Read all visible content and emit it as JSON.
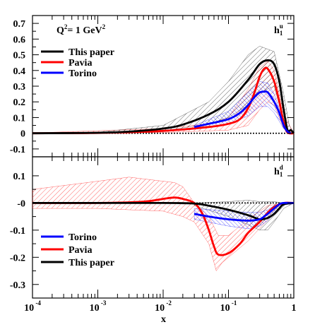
{
  "colors": {
    "this_paper": "#000000",
    "pavia": "#ff0000",
    "torino": "#0000ff"
  },
  "chart_data": {
    "type": "line",
    "xscale": "log",
    "xlim": [
      0.0001,
      1
    ],
    "x_tick_labels": [
      {
        "base": "10",
        "exp": "-4"
      },
      {
        "base": "10",
        "exp": "-3"
      },
      {
        "base": "10",
        "exp": "-2"
      },
      {
        "base": "10",
        "exp": "-1"
      },
      {
        "base": "1",
        "exp": ""
      }
    ],
    "xlabel": "x",
    "panels": [
      {
        "id": "u",
        "tag": {
          "main": "h",
          "sub": "1",
          "sup": "u"
        },
        "annotation": {
          "lhs": "Q",
          "lhs_sup": "2",
          "mid": "= 1 GeV",
          "rhs_sup": "2"
        },
        "ylim": [
          -0.15,
          0.75
        ],
        "y_ticks": [
          -0.1,
          0,
          0.1,
          0.2,
          0.3,
          0.4,
          0.5,
          0.6,
          0.7
        ],
        "y_tick_labels": [
          "-0.1",
          "0",
          "0.1",
          "0.2",
          "0.3",
          "0.4",
          "0.5",
          "0.6",
          "0.7"
        ],
        "legend": [
          "This paper",
          "Pavia",
          "Torino"
        ],
        "series": [
          {
            "name": "This paper",
            "color_key": "this_paper",
            "points": [
              [
                0.0001,
                0.0
              ],
              [
                0.001,
                0.003
              ],
              [
                0.003,
                0.01
              ],
              [
                0.01,
                0.03
              ],
              [
                0.02,
                0.055
              ],
              [
                0.05,
                0.12
              ],
              [
                0.1,
                0.2
              ],
              [
                0.2,
                0.34
              ],
              [
                0.3,
                0.44
              ],
              [
                0.4,
                0.465
              ],
              [
                0.5,
                0.44
              ],
              [
                0.6,
                0.33
              ],
              [
                0.7,
                0.15
              ],
              [
                0.8,
                0.02
              ],
              [
                0.9,
                0.02
              ],
              [
                1.0,
                0.0
              ]
            ],
            "band_upper": [
              [
                0.0001,
                0.004
              ],
              [
                0.001,
                0.007
              ],
              [
                0.01,
                0.05
              ],
              [
                0.05,
                0.2
              ],
              [
                0.1,
                0.33
              ],
              [
                0.2,
                0.5
              ],
              [
                0.3,
                0.555
              ],
              [
                0.5,
                0.52
              ],
              [
                0.7,
                0.25
              ],
              [
                0.85,
                0.05
              ],
              [
                1.0,
                0.0
              ]
            ],
            "band_lower": [
              [
                0.0001,
                -0.004
              ],
              [
                0.001,
                -0.002
              ],
              [
                0.01,
                0.015
              ],
              [
                0.05,
                0.06
              ],
              [
                0.1,
                0.1
              ],
              [
                0.2,
                0.18
              ],
              [
                0.3,
                0.26
              ],
              [
                0.5,
                0.3
              ],
              [
                0.7,
                0.08
              ],
              [
                0.85,
                0.0
              ],
              [
                1.0,
                0.0
              ]
            ]
          },
          {
            "name": "Pavia",
            "color_key": "pavia",
            "points": [
              [
                0.0001,
                0.0
              ],
              [
                0.001,
                0.002
              ],
              [
                0.01,
                0.015
              ],
              [
                0.05,
                0.04
              ],
              [
                0.1,
                0.06
              ],
              [
                0.15,
                0.09
              ],
              [
                0.2,
                0.16
              ],
              [
                0.25,
                0.26
              ],
              [
                0.3,
                0.36
              ],
              [
                0.35,
                0.41
              ],
              [
                0.4,
                0.41
              ],
              [
                0.5,
                0.33
              ],
              [
                0.6,
                0.2
              ],
              [
                0.7,
                0.07
              ],
              [
                0.8,
                0.005
              ],
              [
                1.0,
                0.0
              ]
            ],
            "band_upper": [
              [
                0.0001,
                0.002
              ],
              [
                0.01,
                0.03
              ],
              [
                0.05,
                0.06
              ],
              [
                0.1,
                0.1
              ],
              [
                0.2,
                0.28
              ],
              [
                0.3,
                0.42
              ],
              [
                0.4,
                0.46
              ],
              [
                0.5,
                0.4
              ],
              [
                0.7,
                0.12
              ],
              [
                1.0,
                0.0
              ]
            ],
            "band_lower": [
              [
                0.0001,
                -0.002
              ],
              [
                0.01,
                0.005
              ],
              [
                0.05,
                0.015
              ],
              [
                0.1,
                0.02
              ],
              [
                0.2,
                0.05
              ],
              [
                0.3,
                0.15
              ],
              [
                0.4,
                0.2
              ],
              [
                0.5,
                0.18
              ],
              [
                0.7,
                0.03
              ],
              [
                1.0,
                0.0
              ]
            ]
          },
          {
            "name": "Torino",
            "color_key": "torino",
            "points": [
              [
                0.03,
                0.04
              ],
              [
                0.05,
                0.06
              ],
              [
                0.1,
                0.09
              ],
              [
                0.15,
                0.13
              ],
              [
                0.2,
                0.18
              ],
              [
                0.25,
                0.23
              ],
              [
                0.3,
                0.26
              ],
              [
                0.35,
                0.265
              ],
              [
                0.4,
                0.26
              ],
              [
                0.5,
                0.2
              ],
              [
                0.6,
                0.13
              ],
              [
                0.7,
                0.05
              ],
              [
                0.8,
                0.01
              ],
              [
                0.9,
                0.0
              ]
            ],
            "band_upper": [
              [
                0.03,
                0.05
              ],
              [
                0.1,
                0.14
              ],
              [
                0.2,
                0.26
              ],
              [
                0.3,
                0.33
              ],
              [
                0.4,
                0.32
              ],
              [
                0.5,
                0.25
              ],
              [
                0.7,
                0.07
              ],
              [
                0.9,
                0.0
              ]
            ],
            "band_lower": [
              [
                0.03,
                0.03
              ],
              [
                0.1,
                0.06
              ],
              [
                0.2,
                0.11
              ],
              [
                0.3,
                0.17
              ],
              [
                0.4,
                0.17
              ],
              [
                0.5,
                0.13
              ],
              [
                0.7,
                0.03
              ],
              [
                0.9,
                0.0
              ]
            ]
          }
        ]
      },
      {
        "id": "d",
        "tag": {
          "main": "h",
          "sub": "1",
          "sup": "d"
        },
        "ylim": [
          -0.35,
          0.17
        ],
        "y_ticks": [
          -0.3,
          -0.2,
          -0.1,
          0,
          0.1
        ],
        "y_tick_labels": [
          "-0.3",
          "-0.2",
          "-0.1",
          "-0",
          "0.1"
        ],
        "legend": [
          "Torino",
          "Pavia",
          "This paper"
        ],
        "series": [
          {
            "name": "This paper",
            "color_key": "this_paper",
            "points": [
              [
                0.0001,
                0.0
              ],
              [
                0.01,
                0.0
              ],
              [
                0.03,
                -0.002
              ],
              [
                0.05,
                -0.01
              ],
              [
                0.1,
                -0.025
              ],
              [
                0.2,
                -0.045
              ],
              [
                0.3,
                -0.06
              ],
              [
                0.4,
                -0.055
              ],
              [
                0.5,
                -0.04
              ],
              [
                0.6,
                -0.02
              ],
              [
                0.7,
                -0.005
              ],
              [
                1.0,
                0.0
              ]
            ],
            "band_upper": [
              [
                0.03,
                0.0
              ],
              [
                0.1,
                0.005
              ],
              [
                0.2,
                0.01
              ],
              [
                0.3,
                0.005
              ],
              [
                0.5,
                0.005
              ],
              [
                0.7,
                0.0
              ],
              [
                1.0,
                0.0
              ]
            ],
            "band_lower": [
              [
                0.03,
                -0.01
              ],
              [
                0.1,
                -0.05
              ],
              [
                0.2,
                -0.08
              ],
              [
                0.3,
                -0.1
              ],
              [
                0.4,
                -0.1
              ],
              [
                0.5,
                -0.07
              ],
              [
                0.7,
                -0.02
              ],
              [
                1.0,
                0.0
              ]
            ]
          },
          {
            "name": "Pavia",
            "color_key": "pavia",
            "points": [
              [
                0.0001,
                0.0
              ],
              [
                0.001,
                0.0
              ],
              [
                0.005,
                0.005
              ],
              [
                0.01,
                0.015
              ],
              [
                0.015,
                0.02
              ],
              [
                0.02,
                0.015
              ],
              [
                0.03,
                0.0
              ],
              [
                0.04,
                -0.04
              ],
              [
                0.05,
                -0.1
              ],
              [
                0.06,
                -0.16
              ],
              [
                0.07,
                -0.19
              ],
              [
                0.1,
                -0.185
              ],
              [
                0.15,
                -0.15
              ],
              [
                0.2,
                -0.11
              ],
              [
                0.3,
                -0.07
              ],
              [
                0.4,
                -0.035
              ],
              [
                0.5,
                -0.015
              ],
              [
                0.7,
                0.0
              ],
              [
                1.0,
                0.0
              ]
            ],
            "band_upper": [
              [
                0.0001,
                0.05
              ],
              [
                0.001,
                0.08
              ],
              [
                0.003,
                0.095
              ],
              [
                0.01,
                0.08
              ],
              [
                0.015,
                0.075
              ],
              [
                0.02,
                0.06
              ],
              [
                0.03,
                0.0
              ],
              [
                0.05,
                -0.05
              ],
              [
                0.07,
                -0.12
              ],
              [
                0.1,
                -0.12
              ],
              [
                0.2,
                -0.06
              ],
              [
                0.4,
                -0.01
              ],
              [
                0.7,
                0.0
              ],
              [
                1.0,
                0.0
              ]
            ],
            "band_lower": [
              [
                0.0001,
                -0.02
              ],
              [
                0.001,
                -0.02
              ],
              [
                0.003,
                -0.025
              ],
              [
                0.01,
                -0.03
              ],
              [
                0.02,
                -0.05
              ],
              [
                0.03,
                -0.07
              ],
              [
                0.05,
                -0.15
              ],
              [
                0.065,
                -0.25
              ],
              [
                0.08,
                -0.22
              ],
              [
                0.1,
                -0.2
              ],
              [
                0.2,
                -0.14
              ],
              [
                0.4,
                -0.06
              ],
              [
                0.7,
                -0.005
              ],
              [
                1.0,
                0.0
              ]
            ]
          },
          {
            "name": "Torino",
            "color_key": "torino",
            "points": [
              [
                0.03,
                -0.04
              ],
              [
                0.05,
                -0.05
              ],
              [
                0.1,
                -0.06
              ],
              [
                0.2,
                -0.065
              ],
              [
                0.3,
                -0.06
              ],
              [
                0.35,
                -0.05
              ],
              [
                0.4,
                -0.04
              ],
              [
                0.5,
                -0.02
              ],
              [
                0.6,
                -0.005
              ],
              [
                0.7,
                0.0
              ],
              [
                1.0,
                0.0
              ]
            ],
            "band_upper": [
              [
                0.03,
                -0.02
              ],
              [
                0.1,
                -0.03
              ],
              [
                0.2,
                -0.035
              ],
              [
                0.3,
                -0.035
              ],
              [
                0.4,
                -0.025
              ],
              [
                0.5,
                -0.01
              ],
              [
                0.7,
                0.0
              ],
              [
                1.0,
                0.0
              ]
            ],
            "band_lower": [
              [
                0.03,
                -0.06
              ],
              [
                0.1,
                -0.085
              ],
              [
                0.2,
                -0.095
              ],
              [
                0.3,
                -0.085
              ],
              [
                0.4,
                -0.065
              ],
              [
                0.5,
                -0.035
              ],
              [
                0.7,
                -0.005
              ],
              [
                1.0,
                0.0
              ]
            ]
          }
        ]
      }
    ]
  }
}
